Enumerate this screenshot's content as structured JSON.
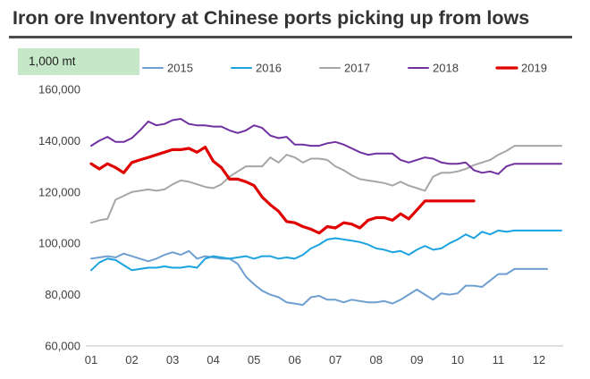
{
  "title": "Iron ore Inventory at Chinese ports picking up from lows",
  "unit_label": "1,000 mt",
  "chart_data": {
    "type": "line",
    "title": "Iron ore Inventory at Chinese ports picking up from lows",
    "ylabel": "1,000 mt",
    "xlabel": "",
    "ylim": [
      60000,
      160000
    ],
    "yticks": [
      "60,000",
      "80,000",
      "100,000",
      "120,000",
      "140,000",
      "160,000"
    ],
    "ytick_values": [
      60000,
      80000,
      100000,
      120000,
      140000,
      160000
    ],
    "xticks": [
      "01",
      "02",
      "03",
      "04",
      "05",
      "06",
      "07",
      "08",
      "09",
      "10",
      "11",
      "12"
    ],
    "xlim": [
      1,
      12.55
    ],
    "grid": false,
    "legend": "top",
    "series": [
      {
        "name": "2015",
        "color": "#6f9fd0",
        "width": 2,
        "x": [
          1,
          1.2,
          1.4,
          1.6,
          1.8,
          2,
          2.2,
          2.4,
          2.6,
          2.8,
          3,
          3.2,
          3.4,
          3.6,
          3.8,
          4,
          4.2,
          4.4,
          4.6,
          4.8,
          5,
          5.2,
          5.4,
          5.6,
          5.8,
          6,
          6.2,
          6.4,
          6.6,
          6.8,
          7,
          7.2,
          7.4,
          7.6,
          7.8,
          8,
          8.2,
          8.4,
          8.6,
          8.8,
          9,
          9.2,
          9.4,
          9.6,
          9.8,
          10,
          10.2,
          10.4,
          10.6,
          10.8,
          11,
          11.2,
          11.4,
          11.6,
          11.8,
          12,
          12.2
        ],
        "values": [
          94000,
          94500,
          95000,
          94500,
          96000,
          95000,
          94000,
          93000,
          94000,
          95500,
          96500,
          95500,
          97000,
          94000,
          95000,
          94500,
          94000,
          94000,
          92000,
          87000,
          84000,
          81500,
          80000,
          79000,
          77000,
          76500,
          76000,
          79000,
          79500,
          78000,
          78000,
          77000,
          78000,
          77500,
          77000,
          77000,
          77500,
          76500,
          78000,
          80000,
          82000,
          80000,
          78000,
          80500,
          80000,
          80500,
          83500,
          83500,
          83000,
          85500,
          88000,
          88000,
          90000,
          90000,
          90000,
          90000,
          90000
        ]
      },
      {
        "name": "2016",
        "color": "#1ba3e0",
        "width": 2,
        "x": [
          1,
          1.2,
          1.4,
          1.6,
          1.8,
          2,
          2.2,
          2.4,
          2.6,
          2.8,
          3,
          3.2,
          3.4,
          3.6,
          3.8,
          4,
          4.2,
          4.4,
          4.6,
          4.8,
          5,
          5.2,
          5.4,
          5.6,
          5.8,
          6,
          6.2,
          6.4,
          6.6,
          6.8,
          7,
          7.2,
          7.4,
          7.6,
          7.8,
          8,
          8.2,
          8.4,
          8.6,
          8.8,
          9,
          9.2,
          9.4,
          9.6,
          9.8,
          10,
          10.2,
          10.4,
          10.6,
          10.8,
          11,
          11.2,
          11.4,
          11.6,
          11.8,
          12,
          12.2,
          12.4,
          12.55
        ],
        "values": [
          89500,
          92500,
          94000,
          93500,
          91500,
          89500,
          90000,
          90500,
          90500,
          91000,
          90500,
          90500,
          91000,
          90500,
          94000,
          95000,
          94500,
          94000,
          94500,
          95000,
          94000,
          95000,
          95000,
          94000,
          94500,
          94000,
          95500,
          98000,
          99500,
          101500,
          102000,
          101500,
          101000,
          100500,
          99500,
          98000,
          97500,
          96500,
          97000,
          95500,
          97500,
          99000,
          97500,
          98000,
          100000,
          101500,
          103500,
          102000,
          104500,
          103500,
          105000,
          104500,
          105000,
          105000,
          105000,
          105000,
          105000,
          105000,
          105000
        ]
      },
      {
        "name": "2017",
        "color": "#a6a6a6",
        "width": 2,
        "x": [
          1,
          1.2,
          1.4,
          1.6,
          1.8,
          2,
          2.2,
          2.4,
          2.6,
          2.8,
          3,
          3.2,
          3.4,
          3.6,
          3.8,
          4,
          4.2,
          4.4,
          4.6,
          4.8,
          5,
          5.2,
          5.4,
          5.6,
          5.8,
          6,
          6.2,
          6.4,
          6.6,
          6.8,
          7,
          7.2,
          7.4,
          7.6,
          7.8,
          8,
          8.2,
          8.4,
          8.6,
          8.8,
          9,
          9.2,
          9.4,
          9.6,
          9.8,
          10,
          10.2,
          10.4,
          10.6,
          10.8,
          11,
          11.2,
          11.4,
          11.6,
          11.8,
          12,
          12.2,
          12.4,
          12.55
        ],
        "values": [
          108000,
          109000,
          109500,
          117000,
          118500,
          120000,
          120500,
          121000,
          120500,
          121000,
          123000,
          124500,
          124000,
          123000,
          122000,
          121500,
          123000,
          126000,
          128000,
          130000,
          130000,
          130000,
          133500,
          131500,
          134500,
          133500,
          131500,
          133000,
          133000,
          132500,
          130000,
          128500,
          126500,
          125000,
          124500,
          124000,
          123500,
          122500,
          124000,
          122500,
          121500,
          120500,
          126000,
          127500,
          127500,
          128000,
          129000,
          130500,
          131500,
          132500,
          134500,
          136000,
          138000,
          138000,
          138000,
          138000,
          138000,
          138000,
          138000
        ]
      },
      {
        "name": "2018",
        "color": "#7030a0",
        "width": 2,
        "x": [
          1,
          1.2,
          1.4,
          1.6,
          1.8,
          2,
          2.2,
          2.4,
          2.6,
          2.8,
          3,
          3.2,
          3.4,
          3.6,
          3.8,
          4,
          4.2,
          4.4,
          4.6,
          4.8,
          5,
          5.2,
          5.4,
          5.6,
          5.8,
          6,
          6.2,
          6.4,
          6.6,
          6.8,
          7,
          7.2,
          7.4,
          7.6,
          7.8,
          8,
          8.2,
          8.4,
          8.6,
          8.8,
          9,
          9.2,
          9.4,
          9.6,
          9.8,
          10,
          10.2,
          10.4,
          10.6,
          10.8,
          11,
          11.2,
          11.4,
          11.6,
          11.8,
          12,
          12.2,
          12.4,
          12.55
        ],
        "values": [
          138000,
          140000,
          141500,
          139500,
          139500,
          141000,
          144000,
          147500,
          146000,
          146500,
          148000,
          148500,
          146500,
          146000,
          146000,
          145500,
          145500,
          144000,
          143000,
          144000,
          146000,
          145000,
          142000,
          141000,
          141500,
          138500,
          138500,
          138000,
          138000,
          139000,
          139500,
          138500,
          137000,
          135500,
          134500,
          135000,
          135000,
          135000,
          132500,
          131500,
          132500,
          133500,
          133000,
          131500,
          131000,
          131000,
          131500,
          128500,
          127500,
          128000,
          127000,
          130000,
          131000,
          131000,
          131000,
          131000,
          131000,
          131000,
          131000
        ]
      },
      {
        "name": "2019",
        "color": "#e00000",
        "width": 3.2,
        "x": [
          1,
          1.2,
          1.4,
          1.6,
          1.8,
          2,
          2.2,
          2.4,
          2.6,
          2.8,
          3,
          3.2,
          3.4,
          3.6,
          3.8,
          4,
          4.2,
          4.4,
          4.6,
          4.8,
          5,
          5.2,
          5.4,
          5.6,
          5.8,
          6,
          6.2,
          6.4,
          6.6,
          6.8,
          7,
          7.2,
          7.4,
          7.6,
          7.8,
          8,
          8.2,
          8.4,
          8.6,
          8.8,
          9,
          9.2,
          9.4,
          9.6,
          9.8,
          10,
          10.2,
          10.4
        ],
        "values": [
          131000,
          129000,
          131000,
          129500,
          127500,
          131500,
          132500,
          133500,
          134500,
          135500,
          136500,
          136500,
          137000,
          135500,
          137500,
          132000,
          129500,
          125000,
          125000,
          124000,
          122500,
          118000,
          115000,
          112500,
          108500,
          108000,
          106500,
          105500,
          104000,
          106500,
          106000,
          108000,
          107500,
          106000,
          109000,
          110000,
          110000,
          109000,
          111500,
          109500,
          113000,
          116500,
          116500,
          116500,
          116500,
          116500,
          116500,
          116500
        ]
      }
    ]
  }
}
